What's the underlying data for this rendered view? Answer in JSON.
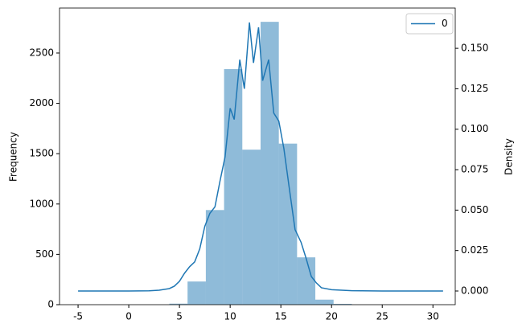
{
  "chart_data": {
    "type": "histogram",
    "bins": [
      4,
      5.8,
      7.6,
      9.4,
      11.2,
      13,
      14.8,
      16.6,
      18.4,
      20.2,
      22
    ],
    "values": [
      10,
      230,
      940,
      2340,
      1540,
      2810,
      1600,
      470,
      50,
      8
    ],
    "color": "#1f77b4",
    "ylabel": "Frequency",
    "y2label": "Density",
    "xlim": [
      -6.83,
      32.2
    ],
    "xticks": [
      -5,
      0,
      5,
      10,
      15,
      20,
      25,
      30
    ],
    "ylim": [
      0,
      2947
    ],
    "yticks": [
      0,
      500,
      1000,
      1500,
      2000,
      2500
    ],
    "y2lim": [
      -0.00845,
      0.1749
    ],
    "y2ticks": [
      {
        "value": 0,
        "label": "0.000"
      },
      0.025,
      {
        "value": 0.05,
        "label": "0.050"
      },
      0.075,
      {
        "value": 0.1,
        "label": "0.100"
      },
      0.125,
      {
        "value": 0.15,
        "label": "0.150"
      }
    ],
    "legend": "upper right",
    "series": [
      {
        "name": "0",
        "color": "#1f77b4",
        "axis": "y2",
        "x": [
          -5,
          0,
          2,
          3,
          4,
          4.5,
          5,
          5.5,
          6,
          6.5,
          7,
          7.5,
          8,
          8.5,
          9,
          9.5,
          10,
          10.4,
          10.95,
          11.4,
          11.9,
          12.3,
          12.8,
          13.2,
          13.8,
          14.3,
          14.8,
          15.3,
          15.8,
          16.4,
          17,
          17.5,
          18,
          18.5,
          19,
          20,
          22,
          25,
          31
        ],
        "values": [
          0,
          0,
          0.0001,
          0.0005,
          0.0015,
          0.003,
          0.006,
          0.011,
          0.015,
          0.018,
          0.026,
          0.04,
          0.048,
          0.052,
          0.068,
          0.083,
          0.113,
          0.106,
          0.143,
          0.125,
          0.166,
          0.141,
          0.163,
          0.13,
          0.143,
          0.11,
          0.105,
          0.088,
          0.065,
          0.038,
          0.03,
          0.02,
          0.009,
          0.005,
          0.002,
          0.0008,
          0.0002,
          0,
          0
        ]
      }
    ]
  }
}
